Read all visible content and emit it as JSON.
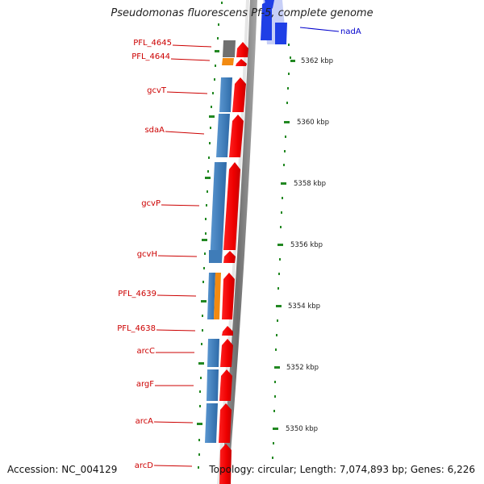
{
  "title": "Pseudomonas fluorescens Pf-5, complete genome",
  "accession": "Accession: NC_004129",
  "summary": "Topology: circular; Length: 7,074,893 bp; Genes: 6,226",
  "colors": {
    "label_red": "#cc0000",
    "label_blue": "#0000cc",
    "red_feature": "#ff0000",
    "blue_feature": "#4a86c0",
    "orange_feature": "#f28a10",
    "gray_feature": "#707070",
    "nad_feature": "#1f3fe6",
    "backbone": "#8a8a8a",
    "tick_green": "#228822"
  },
  "gene_labels": [
    "PFL_4645",
    "PFL_4644",
    "gcvT",
    "sdaA",
    "gcvP",
    "gcvH",
    "PFL_4639",
    "PFL_4638",
    "arcC",
    "argF",
    "arcA",
    "arcD"
  ],
  "nad_label": "nadA",
  "positions": [
    "5362 kbp",
    "5360 kbp",
    "5358 kbp",
    "5356 kbp",
    "5354 kbp",
    "5352 kbp",
    "5350 kbp"
  ]
}
